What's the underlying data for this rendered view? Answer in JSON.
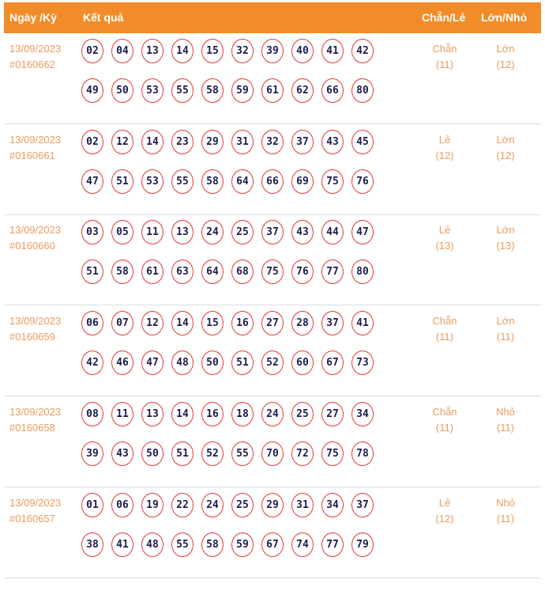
{
  "header": {
    "date_label": "Ngày /Kỳ",
    "result_label": "Kết quả",
    "parity_label": "Chẵn/Lẻ",
    "size_label": "Lớn/Nhỏ"
  },
  "colors": {
    "header_bg": "#f28c28",
    "accent_text": "#ee9a5e",
    "ball_border": "#e23b3b",
    "ball_text": "#1c1c4e"
  },
  "rows": [
    {
      "date": "13/09/2023",
      "draw": "#0160662",
      "numbers": [
        "02",
        "04",
        "13",
        "14",
        "15",
        "32",
        "39",
        "40",
        "41",
        "42",
        "49",
        "50",
        "53",
        "55",
        "58",
        "59",
        "61",
        "62",
        "66",
        "80"
      ],
      "parity": "Chẵn",
      "parity_count": "(11)",
      "size": "Lớn",
      "size_count": "(12)"
    },
    {
      "date": "13/09/2023",
      "draw": "#0160661",
      "numbers": [
        "02",
        "12",
        "14",
        "23",
        "29",
        "31",
        "32",
        "37",
        "43",
        "45",
        "47",
        "51",
        "53",
        "55",
        "58",
        "64",
        "66",
        "69",
        "75",
        "76"
      ],
      "parity": "Lẻ",
      "parity_count": "(12)",
      "size": "Lớn",
      "size_count": "(12)"
    },
    {
      "date": "13/09/2023",
      "draw": "#0160660",
      "numbers": [
        "03",
        "05",
        "11",
        "13",
        "24",
        "25",
        "37",
        "43",
        "44",
        "47",
        "51",
        "58",
        "61",
        "63",
        "64",
        "68",
        "75",
        "76",
        "77",
        "80"
      ],
      "parity": "Lẻ",
      "parity_count": "(13)",
      "size": "Lớn",
      "size_count": "(13)"
    },
    {
      "date": "13/09/2023",
      "draw": "#0160659",
      "numbers": [
        "06",
        "07",
        "12",
        "14",
        "15",
        "16",
        "27",
        "28",
        "37",
        "41",
        "42",
        "46",
        "47",
        "48",
        "50",
        "51",
        "52",
        "60",
        "67",
        "73"
      ],
      "parity": "Chẵn",
      "parity_count": "(11)",
      "size": "Lớn",
      "size_count": "(11)"
    },
    {
      "date": "13/09/2023",
      "draw": "#0160658",
      "numbers": [
        "08",
        "11",
        "13",
        "14",
        "16",
        "18",
        "24",
        "25",
        "27",
        "34",
        "39",
        "43",
        "50",
        "51",
        "52",
        "55",
        "70",
        "72",
        "75",
        "78"
      ],
      "parity": "Chẵn",
      "parity_count": "(11)",
      "size": "Nhỏ",
      "size_count": "(11)"
    },
    {
      "date": "13/09/2023",
      "draw": "#0160657",
      "numbers": [
        "01",
        "06",
        "19",
        "22",
        "24",
        "25",
        "29",
        "31",
        "34",
        "37",
        "38",
        "41",
        "48",
        "55",
        "58",
        "59",
        "67",
        "74",
        "77",
        "79"
      ],
      "parity": "Lẻ",
      "parity_count": "(12)",
      "size": "Nhỏ",
      "size_count": "(11)"
    }
  ]
}
